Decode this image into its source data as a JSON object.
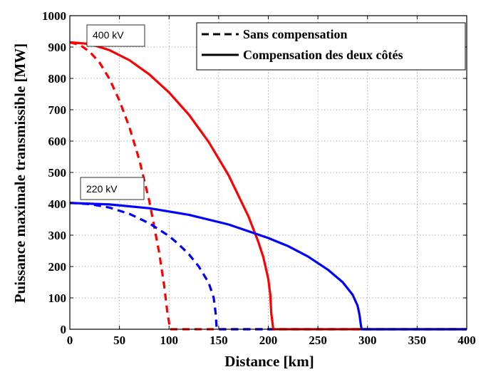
{
  "chart_data": {
    "type": "line",
    "title": "",
    "xlabel": "Distance [km]",
    "ylabel": "Puissance maximale transmissible [MW]",
    "xlim": [
      0,
      400
    ],
    "ylim": [
      0,
      1000
    ],
    "xticks": [
      0,
      50,
      100,
      150,
      200,
      250,
      300,
      350,
      400
    ],
    "yticks": [
      0,
      100,
      200,
      300,
      400,
      500,
      600,
      700,
      800,
      900,
      1000
    ],
    "grid": true,
    "legend": {
      "position": "top-right",
      "entries": [
        {
          "label": "Sans compensation",
          "style": "dashed"
        },
        {
          "label": "Compensation des deux côtés",
          "style": "solid"
        }
      ]
    },
    "annotations": [
      {
        "text": "400 kV"
      },
      {
        "text": "220 kV"
      }
    ],
    "series": [
      {
        "voltage": "400 kV",
        "compensation": "Sans compensation",
        "color": "#ff0000",
        "style": "dashed",
        "x": [
          0,
          10,
          20,
          30,
          40,
          50,
          60,
          70,
          80,
          90,
          95,
          98,
          100,
          101,
          400
        ],
        "y": [
          915,
          907,
          885,
          850,
          798,
          729,
          644,
          540,
          410,
          245,
          140,
          60,
          20,
          0,
          0
        ]
      },
      {
        "voltage": "400 kV",
        "compensation": "Compensation des deux côtés",
        "color": "#ff0000",
        "style": "solid",
        "x": [
          0,
          20,
          40,
          60,
          80,
          100,
          120,
          140,
          160,
          180,
          190,
          195,
          200,
          202,
          203,
          205,
          400
        ],
        "y": [
          915,
          910,
          890,
          858,
          813,
          755,
          684,
          597,
          491,
          360,
          278,
          230,
          160,
          110,
          50,
          0,
          0
        ]
      },
      {
        "voltage": "220 kV",
        "compensation": "Sans compensation",
        "color": "#0000ff",
        "style": "dashed",
        "x": [
          0,
          20,
          40,
          60,
          80,
          100,
          110,
          120,
          130,
          140,
          145,
          147,
          148,
          400
        ],
        "y": [
          403,
          399,
          388,
          368,
          338,
          297,
          270,
          239,
          200,
          148,
          100,
          50,
          0,
          0
        ]
      },
      {
        "voltage": "220 kV",
        "compensation": "Compensation des deux côtés",
        "color": "#0000ff",
        "style": "solid",
        "x": [
          0,
          40,
          80,
          120,
          160,
          200,
          220,
          240,
          260,
          275,
          285,
          290,
          292,
          293,
          294,
          400
        ],
        "y": [
          403,
          398,
          386,
          365,
          334,
          291,
          265,
          232,
          190,
          150,
          110,
          75,
          45,
          20,
          0,
          0
        ]
      }
    ]
  }
}
